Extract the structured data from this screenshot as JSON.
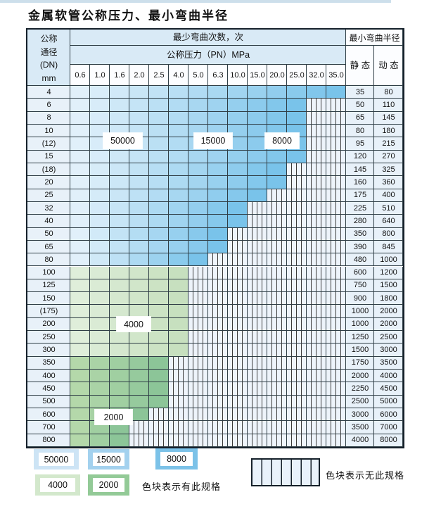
{
  "page": {
    "title": "金属软管公称压力、最小弯曲半径"
  },
  "table": {
    "header": {
      "dn_label_lines": [
        "公称",
        "通径",
        "(DN)",
        "mm"
      ],
      "cycles_label": "最少弯曲次数，次",
      "pressure_label": "公称压力（PN）MPa",
      "radius_label": "最小弯曲半径",
      "static_label": "静 态",
      "dynamic_label": "动 态",
      "pressures": [
        "0.6",
        "1.0",
        "1.6",
        "2.0",
        "2.5",
        "4.0",
        "5.0",
        "6.3",
        "10.0",
        "15.0",
        "20.0",
        "25.0",
        "32.0",
        "35.0"
      ]
    },
    "rows": [
      {
        "dn": "4",
        "colored": 14,
        "family": "blue",
        "static": "35",
        "dynamic": "80"
      },
      {
        "dn": "6",
        "colored": 12,
        "family": "blue",
        "static": "50",
        "dynamic": "110"
      },
      {
        "dn": "8",
        "colored": 12,
        "family": "blue",
        "static": "65",
        "dynamic": "145"
      },
      {
        "dn": "10",
        "colored": 12,
        "family": "blue",
        "static": "80",
        "dynamic": "180"
      },
      {
        "dn": "(12)",
        "colored": 12,
        "family": "blue",
        "static": "95",
        "dynamic": "215"
      },
      {
        "dn": "15",
        "colored": 12,
        "family": "blue",
        "static": "120",
        "dynamic": "270"
      },
      {
        "dn": "(18)",
        "colored": 11,
        "family": "blue",
        "static": "145",
        "dynamic": "325"
      },
      {
        "dn": "20",
        "colored": 11,
        "family": "blue",
        "static": "160",
        "dynamic": "360"
      },
      {
        "dn": "25",
        "colored": 10,
        "family": "blue",
        "static": "175",
        "dynamic": "400"
      },
      {
        "dn": "32",
        "colored": 9,
        "family": "blue",
        "static": "225",
        "dynamic": "510"
      },
      {
        "dn": "40",
        "colored": 9,
        "family": "blue",
        "static": "280",
        "dynamic": "640"
      },
      {
        "dn": "50",
        "colored": 8,
        "family": "blue",
        "static": "350",
        "dynamic": "800"
      },
      {
        "dn": "65",
        "colored": 8,
        "family": "blue",
        "static": "390",
        "dynamic": "845"
      },
      {
        "dn": "80",
        "colored": 7,
        "family": "blue",
        "static": "480",
        "dynamic": "1000"
      },
      {
        "dn": "100",
        "colored": 6,
        "family": "green_light",
        "static": "600",
        "dynamic": "1200"
      },
      {
        "dn": "125",
        "colored": 6,
        "family": "green_light",
        "static": "750",
        "dynamic": "1500"
      },
      {
        "dn": "150",
        "colored": 6,
        "family": "green_light",
        "static": "900",
        "dynamic": "1800"
      },
      {
        "dn": "(175)",
        "colored": 6,
        "family": "green_light",
        "static": "1000",
        "dynamic": "2000"
      },
      {
        "dn": "200",
        "colored": 6,
        "family": "green_light",
        "static": "1000",
        "dynamic": "2000"
      },
      {
        "dn": "250",
        "colored": 6,
        "family": "green_light",
        "static": "1250",
        "dynamic": "2500"
      },
      {
        "dn": "300",
        "colored": 6,
        "family": "green_light",
        "static": "1500",
        "dynamic": "3000"
      },
      {
        "dn": "350",
        "colored": 5,
        "family": "green_dark",
        "static": "1750",
        "dynamic": "3500"
      },
      {
        "dn": "400",
        "colored": 5,
        "family": "green_dark",
        "static": "2000",
        "dynamic": "4000"
      },
      {
        "dn": "450",
        "colored": 5,
        "family": "green_dark",
        "static": "2250",
        "dynamic": "4500"
      },
      {
        "dn": "500",
        "colored": 5,
        "family": "green_dark",
        "static": "2500",
        "dynamic": "5000"
      },
      {
        "dn": "600",
        "colored": 4,
        "family": "green_dark",
        "static": "3000",
        "dynamic": "6000"
      },
      {
        "dn": "700",
        "colored": 3,
        "family": "green_dark",
        "static": "3500",
        "dynamic": "7000"
      },
      {
        "dn": "800",
        "colored": 3,
        "family": "green_dark",
        "static": "4000",
        "dynamic": "8000"
      }
    ],
    "callouts": [
      {
        "text": "50000"
      },
      {
        "text": "15000"
      },
      {
        "text": "8000"
      },
      {
        "text": "4000"
      },
      {
        "text": "2000"
      }
    ]
  },
  "legend": {
    "swatches": [
      {
        "label": "50000",
        "color": "#cde4f5"
      },
      {
        "label": "15000",
        "color": "#a3d1ee"
      },
      {
        "label": "8000",
        "color": "#7cc2e8"
      },
      {
        "label": "4000",
        "color": "#d3e8cc"
      },
      {
        "label": "2000",
        "color": "#93ca97"
      }
    ],
    "has_spec_note": "色块表示有此规格",
    "no_spec_note": "色块表示无此规格"
  },
  "colors": {
    "blue_start": "#e1f0fa",
    "blue_end": "#79c3ea",
    "green_light_start": "#dfeeda",
    "green_light_end": "#c7e0bf",
    "green_dark_start": "#b4d8aa",
    "green_dark_end": "#8cc598",
    "hatch_bg": "#eef4fb",
    "grid": "#2f3e46"
  }
}
